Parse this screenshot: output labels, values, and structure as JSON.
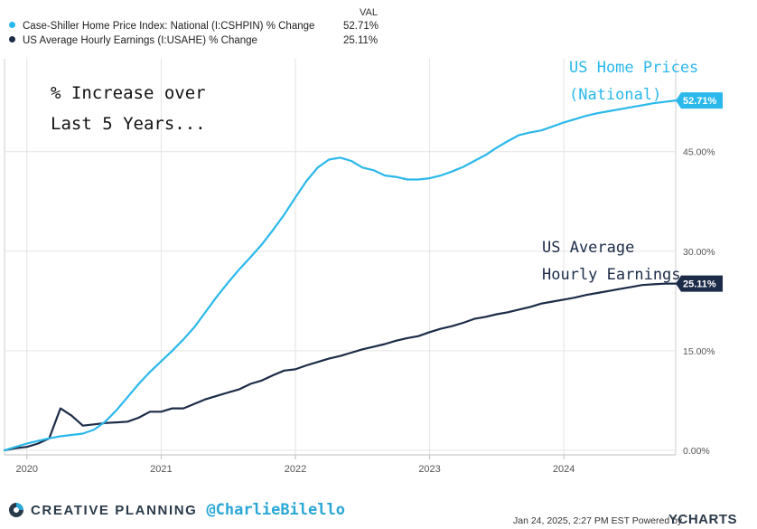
{
  "legend": {
    "header": "VAL",
    "items": [
      {
        "name": "Case-Shiller Home Price Index: National (I:CSHPIN) % Change",
        "value": "52.71%",
        "color": "#2bb8ea"
      },
      {
        "name": "US Average Hourly Earnings (I:USAHE) % Change",
        "value": "25.11%",
        "color": "#1c2b48"
      }
    ]
  },
  "annotations": {
    "main_line1": "% Increase over",
    "main_line2": "Last 5 Years...",
    "home_line1": "US Home Prices",
    "home_line2": "(National)",
    "earn_line1": "US Average",
    "earn_line2": "Hourly Earnings"
  },
  "footer": {
    "brand": "CREATIVE PLANNING",
    "handle": "@CharlieBilello",
    "timestamp": "Jan 24, 2025, 2:27 PM EST Powered by",
    "ycharts": "YCHARTS"
  },
  "colors": {
    "home": "#2bb8ea",
    "earnings": "#1c2b48",
    "grid": "#e4e4e4",
    "annotation_home": "#2bb8ea",
    "annotation_dark": "#1c2b48"
  },
  "chart_data": {
    "type": "line",
    "title": "",
    "xlabel": "",
    "ylabel": "",
    "x_ticks": [
      2020,
      2021,
      2022,
      2023,
      2024
    ],
    "y_ticks": [
      "0.00%",
      "15.00%",
      "30.00%",
      "45.00%"
    ],
    "y_tick_values": [
      0,
      15,
      30,
      45
    ],
    "xlim": [
      "2019-11",
      "2024-11"
    ],
    "ylim": [
      -0.7,
      59
    ],
    "grid": true,
    "legend_position": "top-left",
    "end_labels": [
      "52.71%",
      "25.11%"
    ],
    "series": [
      {
        "name": "Case-Shiller Home Price Index: National (I:CSHPIN) % Change",
        "x": [
          "2019-11",
          "2019-12",
          "2020-01",
          "2020-02",
          "2020-03",
          "2020-04",
          "2020-05",
          "2020-06",
          "2020-07",
          "2020-08",
          "2020-09",
          "2020-10",
          "2020-11",
          "2020-12",
          "2021-01",
          "2021-02",
          "2021-03",
          "2021-04",
          "2021-05",
          "2021-06",
          "2021-07",
          "2021-08",
          "2021-09",
          "2021-10",
          "2021-11",
          "2021-12",
          "2022-01",
          "2022-02",
          "2022-03",
          "2022-04",
          "2022-05",
          "2022-06",
          "2022-07",
          "2022-08",
          "2022-09",
          "2022-10",
          "2022-11",
          "2022-12",
          "2023-01",
          "2023-02",
          "2023-03",
          "2023-04",
          "2023-05",
          "2023-06",
          "2023-07",
          "2023-08",
          "2023-09",
          "2023-10",
          "2023-11",
          "2023-12",
          "2024-01",
          "2024-02",
          "2024-03",
          "2024-04",
          "2024-05",
          "2024-06",
          "2024-07",
          "2024-08",
          "2024-09",
          "2024-10",
          "2024-11"
        ],
        "values": [
          0.0,
          0.5,
          1.0,
          1.4,
          1.8,
          2.1,
          2.3,
          2.5,
          3.1,
          4.3,
          6.0,
          8.0,
          10.0,
          11.8,
          13.4,
          15.0,
          16.7,
          18.6,
          20.9,
          23.2,
          25.3,
          27.3,
          29.1,
          31.0,
          33.2,
          35.5,
          38.1,
          40.6,
          42.6,
          43.8,
          44.1,
          43.6,
          42.6,
          42.2,
          41.4,
          41.2,
          40.8,
          40.8,
          41.0,
          41.4,
          42.0,
          42.7,
          43.6,
          44.5,
          45.6,
          46.6,
          47.5,
          47.9,
          48.2,
          48.8,
          49.4,
          49.9,
          50.4,
          50.8,
          51.1,
          51.4,
          51.7,
          52.0,
          52.3,
          52.5,
          52.71
        ]
      },
      {
        "name": "US Average Hourly Earnings (I:USAHE) % Change",
        "x": [
          "2019-11",
          "2019-12",
          "2020-01",
          "2020-02",
          "2020-03",
          "2020-04",
          "2020-05",
          "2020-06",
          "2020-07",
          "2020-08",
          "2020-09",
          "2020-10",
          "2020-11",
          "2020-12",
          "2021-01",
          "2021-02",
          "2021-03",
          "2021-04",
          "2021-05",
          "2021-06",
          "2021-07",
          "2021-08",
          "2021-09",
          "2021-10",
          "2021-11",
          "2021-12",
          "2022-01",
          "2022-02",
          "2022-03",
          "2022-04",
          "2022-05",
          "2022-06",
          "2022-07",
          "2022-08",
          "2022-09",
          "2022-10",
          "2022-11",
          "2022-12",
          "2023-01",
          "2023-02",
          "2023-03",
          "2023-04",
          "2023-05",
          "2023-06",
          "2023-07",
          "2023-08",
          "2023-09",
          "2023-10",
          "2023-11",
          "2023-12",
          "2024-01",
          "2024-02",
          "2024-03",
          "2024-04",
          "2024-05",
          "2024-06",
          "2024-07",
          "2024-08",
          "2024-09",
          "2024-10",
          "2024-11"
        ],
        "values": [
          0.0,
          0.3,
          0.5,
          1.0,
          1.8,
          6.3,
          5.2,
          3.7,
          3.9,
          4.1,
          4.2,
          4.3,
          4.9,
          5.8,
          5.8,
          6.3,
          6.3,
          7.0,
          7.7,
          8.2,
          8.7,
          9.2,
          10.0,
          10.5,
          11.3,
          12.0,
          12.2,
          12.8,
          13.3,
          13.8,
          14.2,
          14.7,
          15.2,
          15.6,
          16.0,
          16.5,
          16.9,
          17.2,
          17.8,
          18.3,
          18.7,
          19.2,
          19.8,
          20.1,
          20.5,
          20.8,
          21.2,
          21.6,
          22.1,
          22.4,
          22.7,
          23.0,
          23.4,
          23.7,
          24.0,
          24.3,
          24.6,
          24.9,
          25.0,
          25.1,
          25.11
        ]
      }
    ]
  }
}
